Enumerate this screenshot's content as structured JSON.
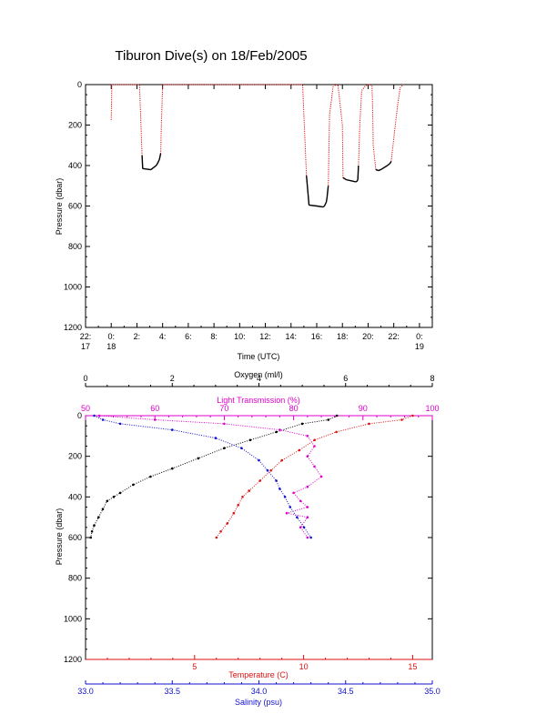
{
  "title": "Tiburon Dive(s) on 18/Feb/2005",
  "colors": {
    "black": "#000000",
    "red": "#dd1111",
    "magenta": "#dd00cc",
    "blue": "#1111cc",
    "trace": "#dd1111"
  },
  "chart_data": [
    {
      "type": "line",
      "title": "Tiburon Dive(s) on 18/Feb/2005",
      "xlabel": "Time (UTC)",
      "ylabel": "Pressure (dbar)",
      "x_ticks": [
        "22:",
        "0:",
        "2:",
        "4:",
        "6:",
        "8:",
        "10:",
        "12:",
        "14:",
        "16:",
        "18:",
        "20:",
        "22:",
        "0:"
      ],
      "x_tick_days": [
        "17",
        "18",
        "",
        "",
        "",
        "",
        "",
        "",
        "",
        "",
        "",
        "",
        "",
        "19"
      ],
      "x_unit": "hours since 18/Feb/2005 00:00 UTC",
      "xlim": [
        -2,
        25
      ],
      "ylim": [
        1200,
        0
      ],
      "y_ticks": [
        0,
        200,
        400,
        600,
        800,
        1000,
        1200
      ],
      "grid": false,
      "series": [
        {
          "x": [
            0.0,
            0.05,
            2.2,
            2.4,
            2.45,
            3.0,
            3.1,
            3.3,
            3.5,
            3.6,
            3.75,
            3.85,
            3.9,
            4.0,
            14.9,
            15.0,
            15.2,
            15.4,
            16.0,
            16.5,
            16.6,
            16.75,
            16.8,
            16.9,
            17.0,
            17.3,
            17.5,
            17.65,
            18.0,
            18.05,
            18.3,
            19.0,
            19.1,
            19.2,
            19.25,
            19.35,
            19.5,
            19.8,
            20.1,
            20.3,
            20.35,
            20.4,
            20.6,
            20.8,
            21.0,
            21.5,
            21.7,
            21.8,
            22.3,
            22.5,
            22.75
          ],
          "y": [
            175,
            0,
            0,
            350,
            415,
            420,
            420,
            410,
            400,
            390,
            370,
            340,
            200,
            0,
            0,
            150,
            450,
            595,
            600,
            605,
            600,
            580,
            560,
            500,
            150,
            0,
            5,
            0,
            200,
            460,
            470,
            480,
            480,
            470,
            400,
            200,
            30,
            5,
            0,
            5,
            100,
            300,
            420,
            425,
            420,
            400,
            390,
            380,
            100,
            15,
            0
          ]
        }
      ]
    },
    {
      "type": "scatter",
      "ylabel": "Pressure (dbar)",
      "ylim": [
        1200,
        0
      ],
      "y_ticks": [
        0,
        200,
        400,
        600,
        800,
        1000,
        1200
      ],
      "axes": {
        "oxygen": {
          "label": "Oxygen (ml/l)",
          "range": [
            0,
            8
          ],
          "ticks": [
            0,
            2,
            4,
            6,
            8
          ],
          "position": "top",
          "color": "#000000"
        },
        "transmission": {
          "label": "Light Transmission (%)",
          "range": [
            50,
            100
          ],
          "ticks": [
            50,
            60,
            70,
            80,
            90,
            100
          ],
          "position": "top",
          "color": "#dd00cc"
        },
        "temperature": {
          "label": "Temperature (C)",
          "range": [
            0,
            15.9
          ],
          "ticks": [
            5,
            10,
            15
          ],
          "position": "bottom",
          "color": "#dd1111"
        },
        "salinity": {
          "label": "Salinity (psu)",
          "range": [
            33.0,
            35.0
          ],
          "ticks": [
            "33.0",
            "33.5",
            "34.0",
            "34.5",
            "35.0"
          ],
          "position": "bottom",
          "color": "#1111cc"
        }
      },
      "series": [
        {
          "name": "Oxygen",
          "color": "#000000",
          "axis": "oxygen",
          "points": [
            [
              5.8,
              0
            ],
            [
              5.6,
              20
            ],
            [
              5.0,
              40
            ],
            [
              4.4,
              80
            ],
            [
              3.8,
              120
            ],
            [
              3.2,
              160
            ],
            [
              2.6,
              210
            ],
            [
              2.0,
              260
            ],
            [
              1.5,
              300
            ],
            [
              1.1,
              340
            ],
            [
              0.8,
              380
            ],
            [
              0.65,
              400
            ],
            [
              0.5,
              420
            ],
            [
              0.4,
              460
            ],
            [
              0.3,
              500
            ],
            [
              0.2,
              540
            ],
            [
              0.15,
              570
            ],
            [
              0.12,
              600
            ]
          ]
        },
        {
          "name": "Light Transmission",
          "color": "#dd00cc",
          "axis": "transmission",
          "points": [
            [
              52,
              0
            ],
            [
              60,
              20
            ],
            [
              70,
              40
            ],
            [
              78,
              70
            ],
            [
              82,
              100
            ],
            [
              83,
              150
            ],
            [
              82,
              200
            ],
            [
              83,
              250
            ],
            [
              84,
              300
            ],
            [
              82,
              350
            ],
            [
              80,
              380
            ],
            [
              81,
              420
            ],
            [
              82,
              450
            ],
            [
              79,
              480
            ],
            [
              82,
              500
            ],
            [
              81,
              550
            ],
            [
              82,
              600
            ]
          ]
        },
        {
          "name": "Temperature",
          "color": "#dd1111",
          "axis": "temperature",
          "points": [
            [
              15.0,
              0
            ],
            [
              14.5,
              20
            ],
            [
              13.0,
              40
            ],
            [
              11.5,
              80
            ],
            [
              10.5,
              120
            ],
            [
              9.8,
              170
            ],
            [
              9.0,
              220
            ],
            [
              8.5,
              270
            ],
            [
              8.0,
              320
            ],
            [
              7.5,
              370
            ],
            [
              7.2,
              400
            ],
            [
              7.0,
              440
            ],
            [
              6.8,
              480
            ],
            [
              6.5,
              530
            ],
            [
              6.2,
              570
            ],
            [
              6.0,
              600
            ]
          ]
        },
        {
          "name": "Salinity",
          "color": "#1111cc",
          "axis": "salinity",
          "points": [
            [
              33.05,
              0
            ],
            [
              33.1,
              20
            ],
            [
              33.2,
              40
            ],
            [
              33.5,
              70
            ],
            [
              33.75,
              110
            ],
            [
              33.9,
              160
            ],
            [
              34.0,
              220
            ],
            [
              34.05,
              270
            ],
            [
              34.1,
              320
            ],
            [
              34.12,
              360
            ],
            [
              34.15,
              400
            ],
            [
              34.18,
              450
            ],
            [
              34.22,
              500
            ],
            [
              34.26,
              550
            ],
            [
              34.3,
              600
            ]
          ]
        }
      ]
    }
  ]
}
